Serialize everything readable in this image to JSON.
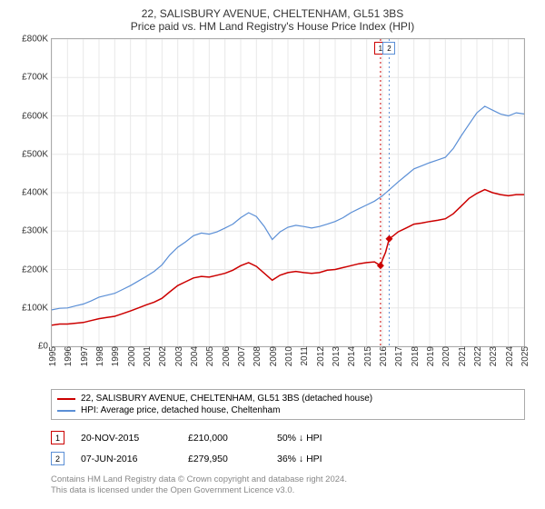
{
  "title": {
    "line1": "22, SALISBURY AVENUE, CHELTENHAM, GL51 3BS",
    "line2": "Price paid vs. HM Land Registry's House Price Index (HPI)"
  },
  "chart": {
    "type": "line",
    "ylim": [
      0,
      800000
    ],
    "ytick_step": 100000,
    "ylabels": [
      "£0",
      "£100K",
      "£200K",
      "£300K",
      "£400K",
      "£500K",
      "£600K",
      "£700K",
      "£800K"
    ],
    "xlim": [
      1995,
      2025
    ],
    "xstep": 1,
    "xlabels": [
      "1995",
      "1996",
      "1997",
      "1998",
      "1999",
      "2000",
      "2001",
      "2002",
      "2003",
      "2004",
      "2005",
      "2006",
      "2007",
      "2008",
      "2009",
      "2010",
      "2011",
      "2012",
      "2013",
      "2014",
      "2015",
      "2016",
      "2017",
      "2018",
      "2019",
      "2020",
      "2021",
      "2022",
      "2023",
      "2024",
      "2025"
    ],
    "background_color": "#ffffff",
    "grid_color": "#e8e8e8",
    "border_color": "#aaaaaa",
    "series": [
      {
        "name": "property",
        "color": "#cc0000",
        "width": 1.5,
        "legend": "22, SALISBURY AVENUE, CHELTENHAM, GL51 3BS (detached house)",
        "data": [
          [
            1995,
            55000
          ],
          [
            1995.5,
            58000
          ],
          [
            1996,
            58000
          ],
          [
            1996.5,
            60000
          ],
          [
            1997,
            62000
          ],
          [
            1997.5,
            67000
          ],
          [
            1998,
            72000
          ],
          [
            1998.5,
            75000
          ],
          [
            1999,
            78000
          ],
          [
            1999.5,
            85000
          ],
          [
            2000,
            92000
          ],
          [
            2000.5,
            100000
          ],
          [
            2001,
            108000
          ],
          [
            2001.5,
            115000
          ],
          [
            2002,
            125000
          ],
          [
            2002.5,
            142000
          ],
          [
            2003,
            158000
          ],
          [
            2003.5,
            168000
          ],
          [
            2004,
            178000
          ],
          [
            2004.5,
            182000
          ],
          [
            2005,
            180000
          ],
          [
            2005.5,
            185000
          ],
          [
            2006,
            190000
          ],
          [
            2006.5,
            198000
          ],
          [
            2007,
            210000
          ],
          [
            2007.5,
            218000
          ],
          [
            2008,
            208000
          ],
          [
            2008.5,
            190000
          ],
          [
            2009,
            172000
          ],
          [
            2009.5,
            185000
          ],
          [
            2010,
            192000
          ],
          [
            2010.5,
            195000
          ],
          [
            2011,
            192000
          ],
          [
            2011.5,
            190000
          ],
          [
            2012,
            192000
          ],
          [
            2012.5,
            198000
          ],
          [
            2013,
            200000
          ],
          [
            2013.5,
            205000
          ],
          [
            2014,
            210000
          ],
          [
            2014.5,
            215000
          ],
          [
            2015,
            218000
          ],
          [
            2015.5,
            220000
          ],
          [
            2015.88,
            210000
          ],
          [
            2016,
            225000
          ],
          [
            2016.2,
            245000
          ],
          [
            2016.43,
            279950
          ],
          [
            2016.7,
            288000
          ],
          [
            2017,
            298000
          ],
          [
            2017.5,
            308000
          ],
          [
            2018,
            318000
          ],
          [
            2018.5,
            321000
          ],
          [
            2019,
            325000
          ],
          [
            2019.5,
            328000
          ],
          [
            2020,
            332000
          ],
          [
            2020.5,
            345000
          ],
          [
            2021,
            365000
          ],
          [
            2021.5,
            385000
          ],
          [
            2022,
            398000
          ],
          [
            2022.5,
            408000
          ],
          [
            2023,
            400000
          ],
          [
            2023.5,
            395000
          ],
          [
            2024,
            392000
          ],
          [
            2024.5,
            395000
          ],
          [
            2025,
            395000
          ]
        ]
      },
      {
        "name": "hpi",
        "color": "#5b8fd6",
        "width": 1.2,
        "legend": "HPI: Average price, detached house, Cheltenham",
        "data": [
          [
            1995,
            95000
          ],
          [
            1995.5,
            99000
          ],
          [
            1996,
            100000
          ],
          [
            1996.5,
            105000
          ],
          [
            1997,
            110000
          ],
          [
            1997.5,
            118000
          ],
          [
            1998,
            128000
          ],
          [
            1998.5,
            133000
          ],
          [
            1999,
            138000
          ],
          [
            1999.5,
            148000
          ],
          [
            2000,
            158000
          ],
          [
            2000.5,
            170000
          ],
          [
            2001,
            182000
          ],
          [
            2001.5,
            195000
          ],
          [
            2002,
            212000
          ],
          [
            2002.5,
            238000
          ],
          [
            2003,
            258000
          ],
          [
            2003.5,
            272000
          ],
          [
            2004,
            288000
          ],
          [
            2004.5,
            295000
          ],
          [
            2005,
            292000
          ],
          [
            2005.5,
            298000
          ],
          [
            2006,
            308000
          ],
          [
            2006.5,
            318000
          ],
          [
            2007,
            335000
          ],
          [
            2007.5,
            348000
          ],
          [
            2008,
            338000
          ],
          [
            2008.5,
            312000
          ],
          [
            2009,
            278000
          ],
          [
            2009.5,
            298000
          ],
          [
            2010,
            310000
          ],
          [
            2010.5,
            315000
          ],
          [
            2011,
            312000
          ],
          [
            2011.5,
            308000
          ],
          [
            2012,
            312000
          ],
          [
            2012.5,
            318000
          ],
          [
            2013,
            325000
          ],
          [
            2013.5,
            335000
          ],
          [
            2014,
            348000
          ],
          [
            2014.5,
            358000
          ],
          [
            2015,
            368000
          ],
          [
            2015.5,
            378000
          ],
          [
            2016,
            392000
          ],
          [
            2016.5,
            410000
          ],
          [
            2017,
            428000
          ],
          [
            2017.5,
            445000
          ],
          [
            2018,
            462000
          ],
          [
            2018.5,
            470000
          ],
          [
            2019,
            478000
          ],
          [
            2019.5,
            485000
          ],
          [
            2020,
            492000
          ],
          [
            2020.5,
            515000
          ],
          [
            2021,
            548000
          ],
          [
            2021.5,
            578000
          ],
          [
            2022,
            608000
          ],
          [
            2022.5,
            625000
          ],
          [
            2023,
            615000
          ],
          [
            2023.5,
            605000
          ],
          [
            2024,
            600000
          ],
          [
            2024.5,
            608000
          ],
          [
            2025,
            605000
          ]
        ]
      }
    ],
    "markers": [
      {
        "label": "1",
        "x": 2015.88,
        "y": 210000,
        "color": "#cc0000",
        "line_color": "#cc0000"
      },
      {
        "label": "2",
        "x": 2016.43,
        "y": 279950,
        "color": "#5b8fd6",
        "line_color": "#5b8fd6"
      }
    ]
  },
  "legend": [
    {
      "swatch_color": "#cc0000",
      "text": "22, SALISBURY AVENUE, CHELTENHAM, GL51 3BS (detached house)"
    },
    {
      "swatch_color": "#5b8fd6",
      "text": "HPI: Average price, detached house, Cheltenham"
    }
  ],
  "events": [
    {
      "num": "1",
      "border_color": "#cc0000",
      "date": "20-NOV-2015",
      "price": "£210,000",
      "change": "50% ↓ HPI"
    },
    {
      "num": "2",
      "border_color": "#5b8fd6",
      "date": "07-JUN-2016",
      "price": "£279,950",
      "change": "36% ↓ HPI"
    }
  ],
  "footer": {
    "line1": "Contains HM Land Registry data © Crown copyright and database right 2024.",
    "line2": "This data is licensed under the Open Government Licence v3.0."
  }
}
